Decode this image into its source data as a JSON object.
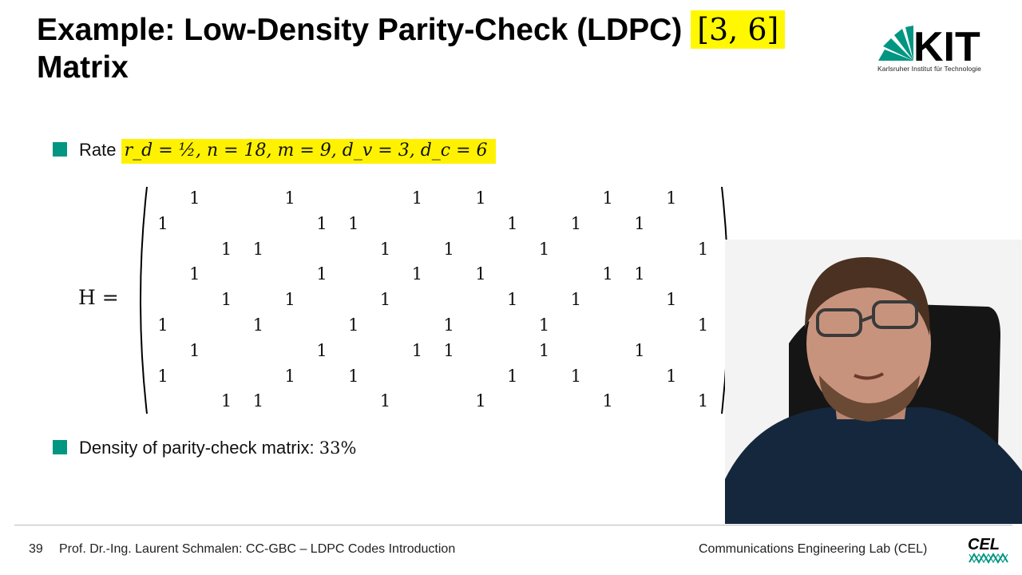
{
  "slide": {
    "title_text": "Example: Low-Density Parity-Check (LDPC)",
    "title_params": "[3, 6]",
    "title_line2": "Matrix",
    "kit_logo_text": "KIT",
    "kit_subtitle": "Karlsruher Institut für Technologie",
    "rate_label": "Rate",
    "rate_formula": "r_d = ½, n = 18, m = 9, d_v = 3, d_c = 6",
    "matrix_label": "H =",
    "matrix_rows": [
      [
        0,
        1,
        0,
        0,
        1,
        0,
        0,
        0,
        1,
        0,
        1,
        0,
        0,
        0,
        1,
        0,
        1,
        0
      ],
      [
        1,
        0,
        0,
        0,
        0,
        1,
        1,
        0,
        0,
        0,
        0,
        1,
        0,
        1,
        0,
        1,
        0,
        0
      ],
      [
        0,
        0,
        1,
        1,
        0,
        0,
        0,
        1,
        0,
        1,
        0,
        0,
        1,
        0,
        0,
        0,
        0,
        1
      ],
      [
        0,
        1,
        0,
        0,
        0,
        1,
        0,
        0,
        1,
        0,
        1,
        0,
        0,
        0,
        1,
        1,
        0,
        0
      ],
      [
        0,
        0,
        1,
        0,
        1,
        0,
        0,
        1,
        0,
        0,
        0,
        1,
        0,
        1,
        0,
        0,
        1,
        0
      ],
      [
        1,
        0,
        0,
        1,
        0,
        0,
        1,
        0,
        0,
        1,
        0,
        0,
        1,
        0,
        0,
        0,
        0,
        1
      ],
      [
        0,
        1,
        0,
        0,
        0,
        1,
        0,
        0,
        1,
        1,
        0,
        0,
        1,
        0,
        0,
        1,
        0,
        0
      ],
      [
        1,
        0,
        0,
        0,
        1,
        0,
        1,
        0,
        0,
        0,
        0,
        1,
        0,
        1,
        0,
        0,
        1,
        0
      ],
      [
        0,
        0,
        1,
        1,
        0,
        0,
        0,
        1,
        0,
        0,
        1,
        0,
        0,
        0,
        1,
        0,
        0,
        1
      ]
    ],
    "density_label": "Density of parity-check matrix:",
    "density_value": "33%"
  },
  "footer": {
    "page_number": "39",
    "left_text": "Prof. Dr.-Ing. Laurent Schmalen: CC-GBC – LDPC Codes Introduction",
    "right_text": "Communications Engineering Lab (CEL)",
    "cel_logo_text": "CEL"
  },
  "colors": {
    "bullet": "#009682",
    "highlight": "#fff200",
    "kit_green": "#009682"
  },
  "icons": {
    "kit_logo": "kit-logo-icon",
    "cel_logo": "cel-logo-icon",
    "webcam": "presenter-webcam"
  }
}
